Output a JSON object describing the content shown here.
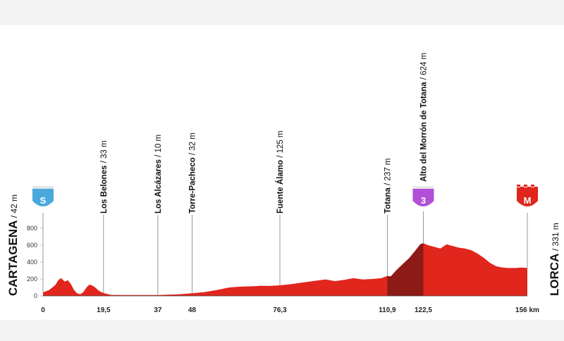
{
  "chart_data": {
    "type": "area",
    "title": "",
    "xlabel": "",
    "ylabel": "",
    "x_unit": "km",
    "ylim": [
      0,
      800
    ],
    "xlim": [
      0,
      156
    ],
    "y_ticks": [
      0,
      200,
      400,
      600,
      800
    ],
    "x_ticks": [
      {
        "value": 0,
        "label": "0"
      },
      {
        "value": 19.5,
        "label": "19,5"
      },
      {
        "value": 37,
        "label": "37"
      },
      {
        "value": 48,
        "label": "48"
      },
      {
        "value": 76.3,
        "label": "76,3"
      },
      {
        "value": 110.9,
        "label": "110,9"
      },
      {
        "value": 122.5,
        "label": "122,5"
      },
      {
        "value": 156,
        "label": "156 km"
      }
    ],
    "profile": [
      [
        0,
        42
      ],
      [
        2,
        70
      ],
      [
        4,
        130
      ],
      [
        5,
        190
      ],
      [
        5.8,
        210
      ],
      [
        7,
        170
      ],
      [
        8,
        185
      ],
      [
        9,
        140
      ],
      [
        10,
        70
      ],
      [
        11,
        30
      ],
      [
        12,
        20
      ],
      [
        13,
        45
      ],
      [
        14,
        100
      ],
      [
        15,
        135
      ],
      [
        16,
        120
      ],
      [
        17,
        95
      ],
      [
        18,
        60
      ],
      [
        19.5,
        33
      ],
      [
        22,
        12
      ],
      [
        26,
        10
      ],
      [
        30,
        10
      ],
      [
        37,
        10
      ],
      [
        40,
        15
      ],
      [
        44,
        20
      ],
      [
        48,
        32
      ],
      [
        52,
        45
      ],
      [
        56,
        70
      ],
      [
        60,
        100
      ],
      [
        64,
        110
      ],
      [
        68,
        115
      ],
      [
        70,
        120
      ],
      [
        73,
        118
      ],
      [
        76.3,
        125
      ],
      [
        80,
        140
      ],
      [
        84,
        160
      ],
      [
        88,
        180
      ],
      [
        91,
        195
      ],
      [
        94,
        175
      ],
      [
        97,
        190
      ],
      [
        100,
        210
      ],
      [
        103,
        195
      ],
      [
        106,
        200
      ],
      [
        109,
        210
      ],
      [
        110.9,
        237
      ],
      [
        112,
        230
      ],
      [
        114,
        310
      ],
      [
        116,
        380
      ],
      [
        118,
        450
      ],
      [
        120,
        540
      ],
      [
        121.5,
        610
      ],
      [
        122.5,
        624
      ],
      [
        124,
        600
      ],
      [
        126,
        580
      ],
      [
        128,
        560
      ],
      [
        130,
        610
      ],
      [
        132,
        590
      ],
      [
        134,
        570
      ],
      [
        136,
        560
      ],
      [
        138,
        540
      ],
      [
        140,
        500
      ],
      [
        142,
        450
      ],
      [
        144,
        390
      ],
      [
        146,
        350
      ],
      [
        148,
        335
      ],
      [
        150,
        330
      ],
      [
        152,
        330
      ],
      [
        154,
        335
      ],
      [
        156,
        331
      ]
    ],
    "climb": {
      "from": 110.9,
      "to": 122.5
    },
    "colors": {
      "profile": "#e0261d",
      "climb": "#8c1a16",
      "start_badge": "#4aa8dc",
      "kom_badge": "#b14fd6",
      "finish_badge": "#e0261d"
    },
    "start": {
      "name": "CARTAGENA",
      "altitude": "42 m",
      "badge": "S",
      "km": 0
    },
    "finish": {
      "name": "LORCA",
      "altitude": "331 m",
      "badge": "M",
      "km": 156
    },
    "waypoints": [
      {
        "km": 19.5,
        "name": "Los Belones",
        "altitude": "33 m"
      },
      {
        "km": 37,
        "name": "Los Alcázares",
        "altitude": "10 m"
      },
      {
        "km": 48,
        "name": "Torre-Pacheco",
        "altitude": "32 m"
      },
      {
        "km": 76.3,
        "name": "Fuente Álamo",
        "altitude": "125 m"
      },
      {
        "km": 110.9,
        "name": "Totana",
        "altitude": "237 m"
      },
      {
        "km": 122.5,
        "name": "Alto del Morrón de Totana",
        "altitude": "624 m",
        "kom_badge": "3"
      }
    ]
  }
}
